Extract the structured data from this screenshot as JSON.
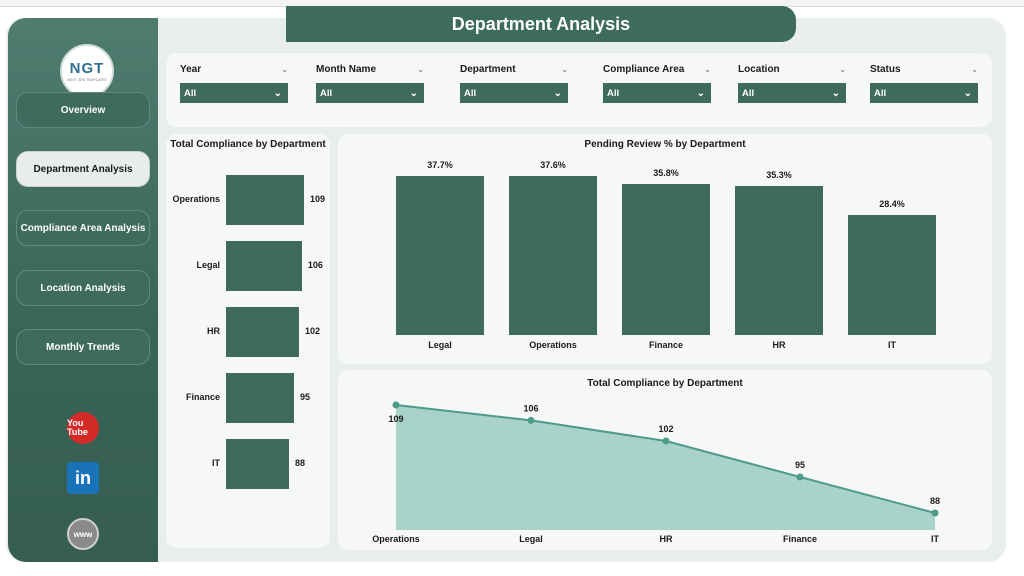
{
  "title": "Department Analysis",
  "logo": {
    "mark": "NGT",
    "sub": "NEXT GEN TEMPLATES"
  },
  "nav": [
    {
      "label": "Overview",
      "active": false
    },
    {
      "label": "Department Analysis",
      "active": true
    },
    {
      "label": "Compliance Area Analysis",
      "active": false
    },
    {
      "label": "Location Analysis",
      "active": false
    },
    {
      "label": "Monthly Trends",
      "active": false
    }
  ],
  "social": {
    "youtube": "You Tube",
    "linkedin": "in",
    "web": "www"
  },
  "filters": [
    {
      "label": "Year",
      "value": "All"
    },
    {
      "label": "Month Name",
      "value": "All"
    },
    {
      "label": "Department",
      "value": "All"
    },
    {
      "label": "Compliance Area",
      "value": "All"
    },
    {
      "label": "Location",
      "value": "All"
    },
    {
      "label": "Status",
      "value": "All"
    }
  ],
  "chart_data": [
    {
      "type": "bar",
      "orientation": "horizontal",
      "title": "Total Compliance by Department",
      "categories": [
        "Operations",
        "Legal",
        "HR",
        "Finance",
        "IT"
      ],
      "values": [
        109,
        106,
        102,
        95,
        88
      ],
      "color": "#3f6a5e"
    },
    {
      "type": "bar",
      "title": "Pending Review % by Department",
      "categories": [
        "Legal",
        "Operations",
        "Finance",
        "HR",
        "IT"
      ],
      "values": [
        37.7,
        37.6,
        35.8,
        35.3,
        28.4
      ],
      "value_labels": [
        "37.7%",
        "37.6%",
        "35.8%",
        "35.3%",
        "28.4%"
      ],
      "color": "#3f6a5e"
    },
    {
      "type": "area",
      "title": "Total Compliance by Department",
      "categories": [
        "Operations",
        "Legal",
        "HR",
        "Finance",
        "IT"
      ],
      "values": [
        109,
        106,
        102,
        95,
        88
      ],
      "color": "#4f9a8a",
      "fill": "#a9d3c8"
    }
  ]
}
